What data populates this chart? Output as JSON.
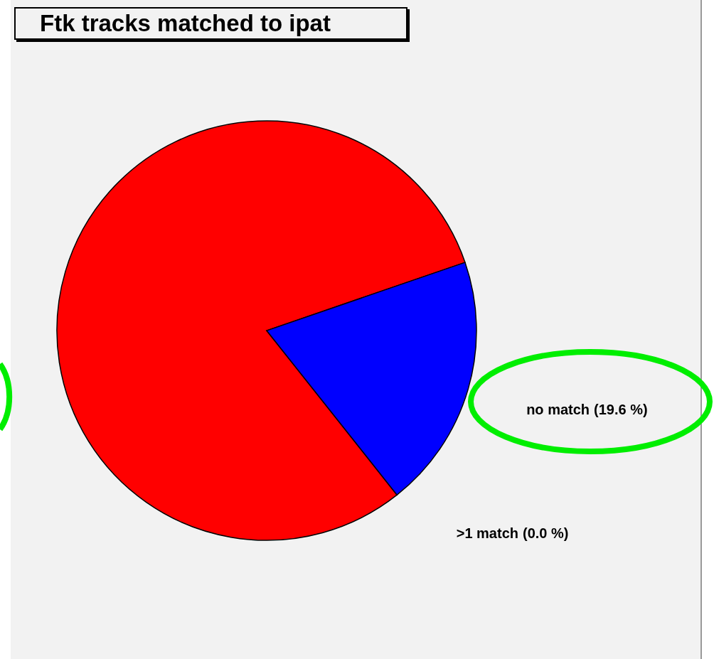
{
  "chart_data": {
    "type": "pie",
    "title": "Ftk tracks matched to ipat",
    "categories": [
      null,
      "no match",
      ">1 match"
    ],
    "values": [
      80.4,
      19.6,
      0.0
    ],
    "colors": [
      "#ff0000",
      "#0000ff",
      "#ffff00"
    ],
    "value_labels": [
      null,
      "(19.6 %)",
      "(0.0 %)"
    ]
  }
}
